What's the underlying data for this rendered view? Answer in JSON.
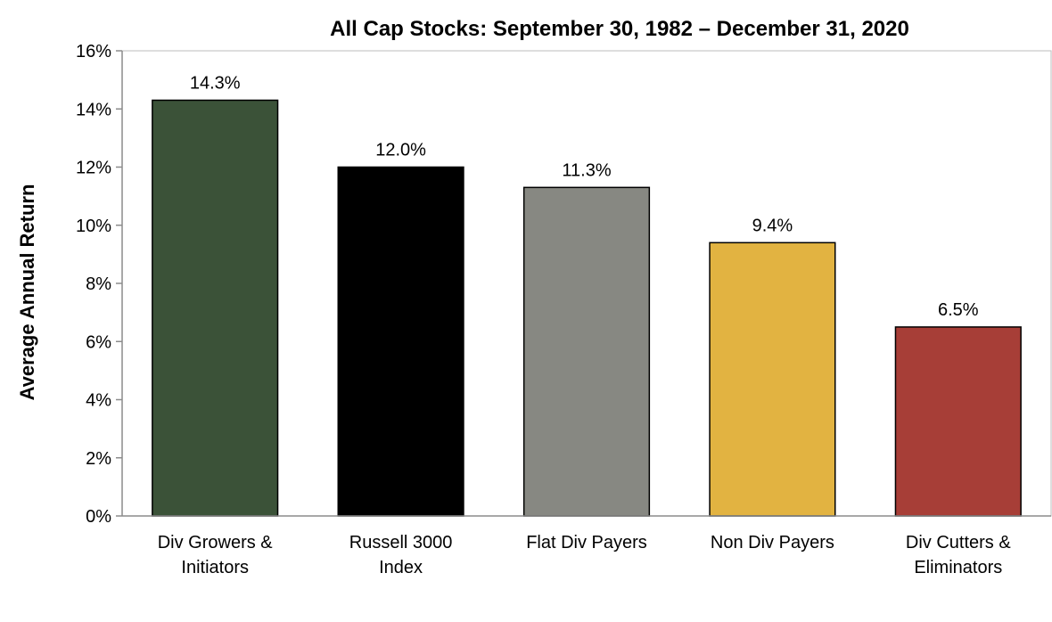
{
  "chart_data": {
    "type": "bar",
    "title": "All Cap Stocks:  September 30, 1982 – December 31, 2020",
    "xlabel": "",
    "ylabel": "Average Annual Return",
    "categories": [
      [
        "Div Growers &",
        "Initiators"
      ],
      [
        "Russell 3000",
        "Index"
      ],
      [
        "Flat Div Payers"
      ],
      [
        "Non Div Payers"
      ],
      [
        "Div Cutters &",
        "Eliminators"
      ]
    ],
    "values": [
      14.3,
      12.0,
      11.3,
      9.4,
      6.5
    ],
    "data_labels": [
      "14.3%",
      "12.0%",
      "11.3%",
      "9.4%",
      "6.5%"
    ],
    "colors": [
      "#3b5238",
      "#000000",
      "#878882",
      "#e2b341",
      "#a73e37"
    ],
    "ylim": [
      0,
      16
    ],
    "yticks": [
      0,
      2,
      4,
      6,
      8,
      10,
      12,
      14,
      16
    ],
    "ytick_labels": [
      "0%",
      "2%",
      "4%",
      "6%",
      "8%",
      "10%",
      "12%",
      "14%",
      "16%"
    ],
    "grid": false,
    "legend": "none"
  }
}
